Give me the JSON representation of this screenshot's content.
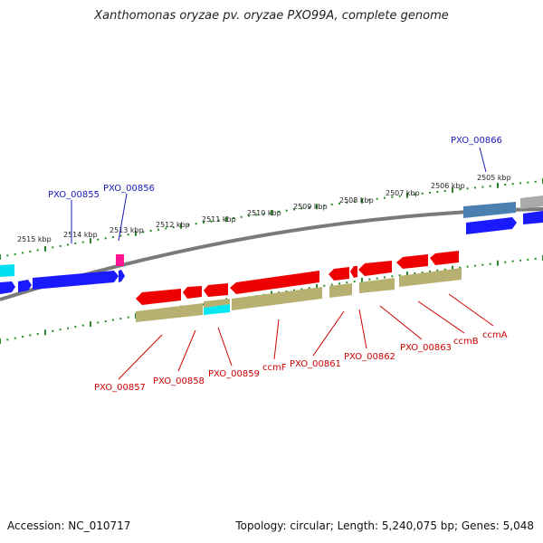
{
  "title": "Xanthomonas oryzae pv. oryzae PXO99A, complete genome",
  "footer": {
    "accession": "Accession: NC_010717",
    "info": "Topology: circular; Length: 5,240,075 bp; Genes: 5,048"
  },
  "colors": {
    "forward_gene": "#1a1aff",
    "forward_gene_highlight": "#4a80b0",
    "reverse_gene": "#ee0000",
    "cds_band": "#b8b070",
    "cyan_band": "#00e8f0",
    "magenta_gene": "#ff1493",
    "tick_green": "#2a8a2a",
    "label_blue": "#1a1ab8",
    "label_red": "#cc0000",
    "backbone": "#888888"
  },
  "kbp_labels": [
    "2515 kbp",
    "2514 kbp",
    "2513 kbp",
    "2512 kbp",
    "2511 kbp",
    "2510 kbp",
    "2509 kbp",
    "2508 kbp",
    "2507 kbp",
    "2506 kbp",
    "2505 kbp"
  ],
  "top_labels": [
    "PXO_00855",
    "PXO_00856",
    "PXO_00866"
  ],
  "bottom_labels": [
    "PXO_00857",
    "PXO_00858",
    "PXO_00859",
    "ccmF",
    "PXO_00861",
    "PXO_00862",
    "PXO_00863",
    "ccmB",
    "ccmA"
  ]
}
